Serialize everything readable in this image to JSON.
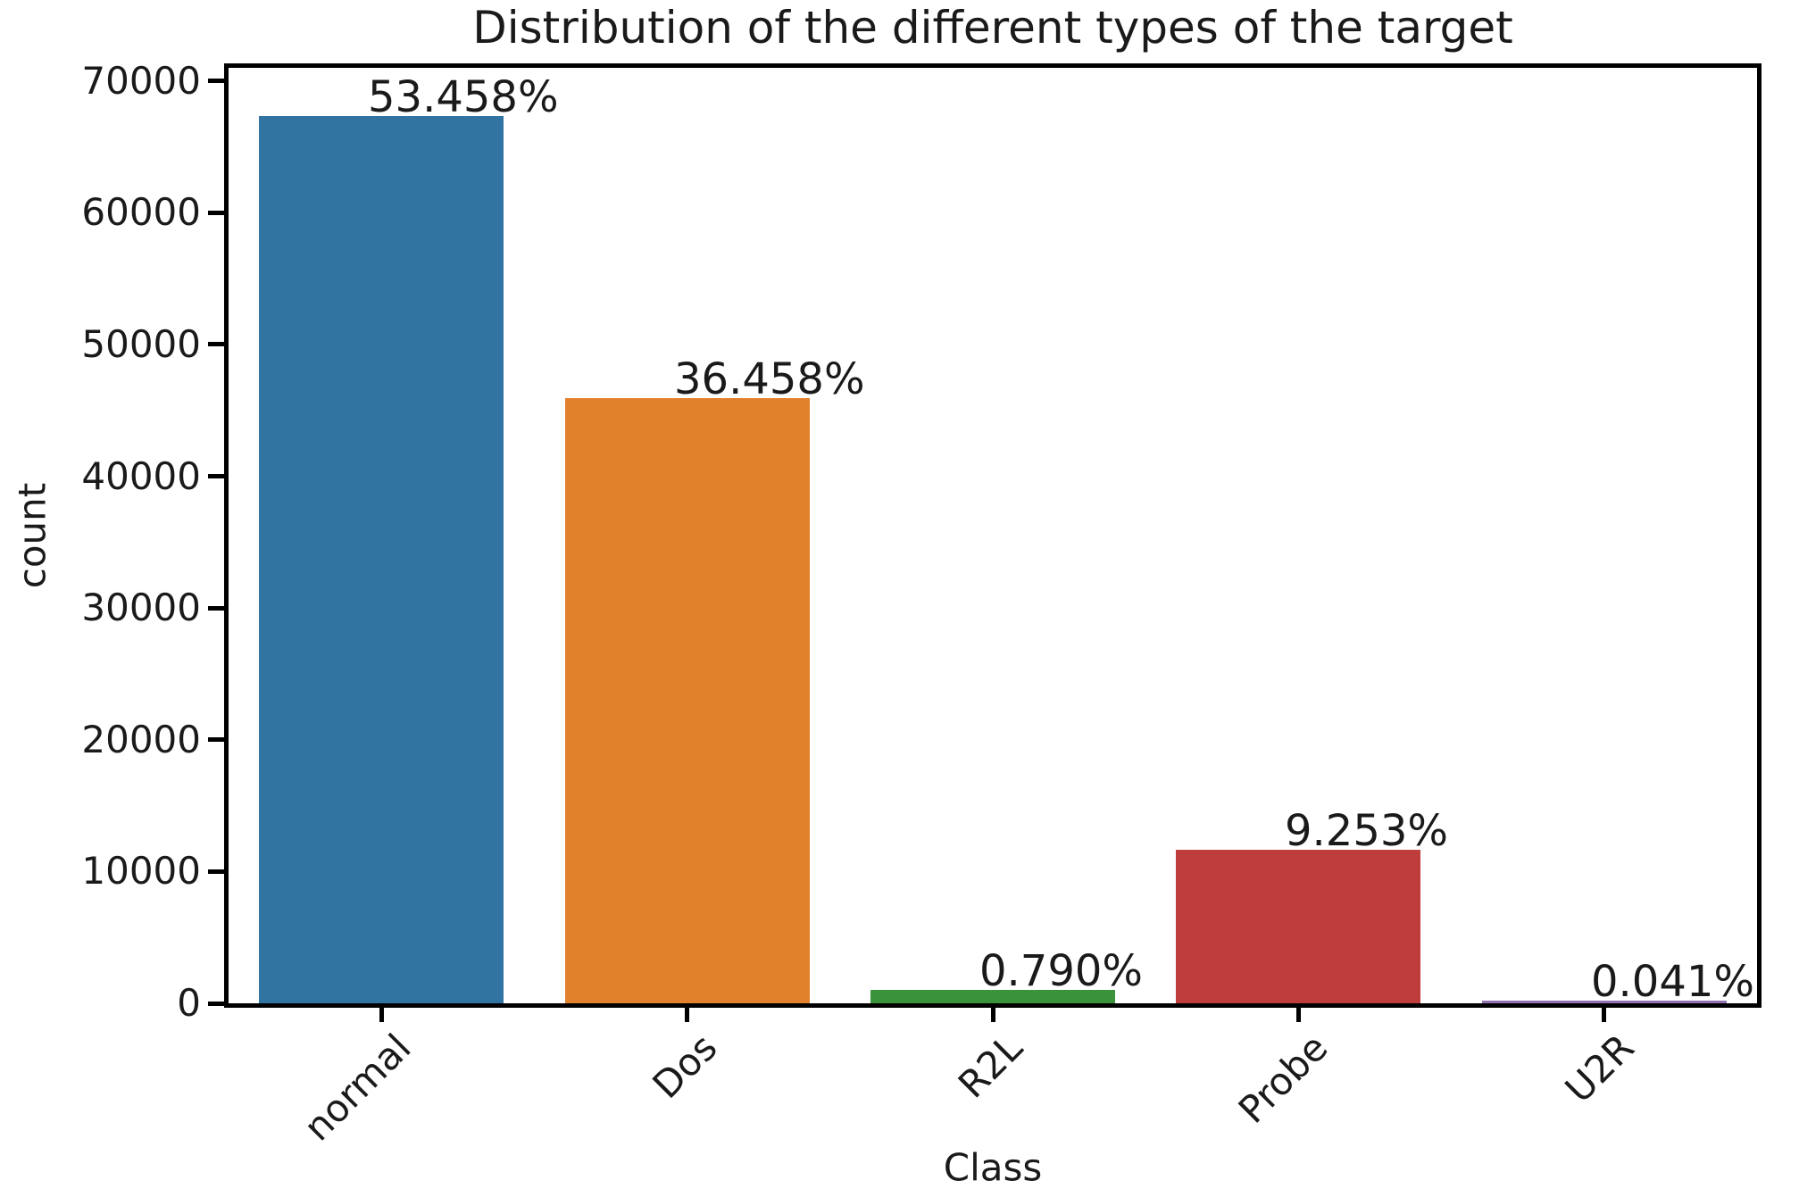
{
  "chart_data": {
    "type": "bar",
    "title": "Distribution of the different types of the target",
    "xlabel": "Class",
    "ylabel": "count",
    "categories": [
      "normal",
      "Dos",
      "R2L",
      "Probe",
      "U2R"
    ],
    "values": [
      67343,
      45927,
      995,
      11656,
      52
    ],
    "bar_labels": [
      "53.458%",
      "36.458%",
      "0.790%",
      "9.253%",
      "0.041%"
    ],
    "bar_colors": [
      "#3274a1",
      "#e1812c",
      "#3a923a",
      "#c03d3e",
      "#9372b2"
    ],
    "ylim": [
      0,
      71000
    ],
    "yticks": [
      0,
      10000,
      20000,
      30000,
      40000,
      50000,
      60000,
      70000
    ],
    "grid": false,
    "legend": "none",
    "axis_color": "#000000",
    "text_color": "#1a1a1a"
  }
}
